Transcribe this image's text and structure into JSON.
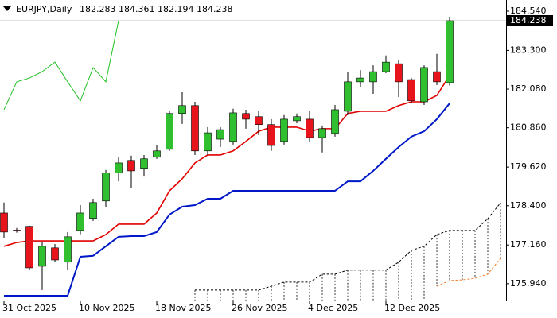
{
  "header": {
    "symbol": "EURJPY,Daily",
    "open": 182.283,
    "high": 184.361,
    "low": 182.194,
    "close": 184.238
  },
  "chart_data": {
    "type": "candlestick",
    "categories": [
      "31 Oct 2025",
      null,
      null,
      null,
      null,
      null,
      "10 Nov 2025",
      null,
      null,
      null,
      null,
      null,
      "18 Nov 2025",
      null,
      null,
      null,
      null,
      null,
      "26 Nov 2025",
      null,
      null,
      null,
      null,
      null,
      "4 Dec 2025",
      null,
      null,
      null,
      null,
      null,
      "12 Dec 2025",
      null,
      null,
      null,
      null,
      null,
      null,
      null,
      null,
      null
    ],
    "open": [
      178.17,
      177.63,
      177.75,
      176.49,
      177.07,
      176.62,
      177.62,
      178.0,
      178.55,
      179.43,
      179.83,
      179.58,
      179.93,
      180.18,
      181.31,
      181.56,
      180.13,
      180.5,
      180.43,
      181.31,
      181.21,
      180.96,
      180.43,
      181.08,
      181.13,
      180.55,
      180.68,
      181.38,
      182.31,
      182.31,
      182.63,
      182.88,
      182.38,
      181.68,
      182.63,
      182.283,
      null,
      null,
      null,
      null
    ],
    "high": [
      178.5,
      177.7,
      177.77,
      177.24,
      177.19,
      177.57,
      178.42,
      178.62,
      179.53,
      179.93,
      179.98,
      180.0,
      180.3,
      181.38,
      181.98,
      181.68,
      180.88,
      180.88,
      181.46,
      181.43,
      181.38,
      181.13,
      181.26,
      181.31,
      181.38,
      180.93,
      181.58,
      182.63,
      182.68,
      182.83,
      183.14,
      183.01,
      182.43,
      182.83,
      183.19,
      184.361,
      null,
      null,
      null,
      null
    ],
    "low": [
      177.37,
      177.55,
      176.37,
      175.74,
      176.62,
      176.37,
      177.5,
      177.92,
      178.37,
      179.17,
      178.97,
      179.32,
      179.88,
      180.13,
      180.98,
      180.0,
      180.0,
      180.25,
      180.33,
      180.83,
      180.63,
      180.13,
      180.33,
      181.0,
      180.43,
      180.08,
      180.58,
      181.26,
      182.13,
      181.93,
      182.58,
      181.83,
      181.63,
      181.58,
      182.21,
      182.194,
      null,
      null,
      null,
      null
    ],
    "close": [
      177.57,
      177.62,
      176.44,
      177.12,
      176.69,
      177.42,
      178.17,
      178.5,
      179.43,
      179.75,
      179.5,
      179.88,
      180.13,
      181.31,
      181.56,
      180.13,
      180.7,
      180.8,
      181.33,
      181.13,
      180.96,
      180.3,
      181.13,
      181.21,
      180.55,
      180.83,
      181.43,
      182.31,
      182.43,
      182.63,
      182.93,
      182.31,
      181.71,
      182.76,
      182.31,
      184.238,
      null,
      null,
      null,
      null
    ],
    "up_color": "#2fbf2f",
    "down_color": "#e8141c",
    "lines": [
      {
        "color": "#e00000",
        "width": 1.6,
        "values": [
          177.12,
          177.24,
          177.29,
          177.29,
          177.29,
          177.29,
          177.29,
          177.29,
          177.49,
          177.82,
          177.82,
          177.82,
          178.17,
          178.87,
          179.25,
          179.75,
          180.0,
          180.0,
          180.13,
          180.43,
          180.75,
          180.88,
          180.88,
          180.88,
          180.75,
          180.83,
          180.83,
          181.31,
          181.38,
          181.38,
          181.38,
          181.56,
          181.68,
          181.68,
          181.88,
          182.51,
          null,
          null,
          null,
          null
        ]
      },
      {
        "color": "#0018c8",
        "width": 2,
        "values": [
          175.56,
          175.56,
          175.56,
          175.56,
          175.56,
          175.56,
          176.79,
          176.82,
          177.12,
          177.42,
          177.44,
          177.44,
          177.57,
          178.12,
          178.37,
          178.42,
          178.62,
          178.62,
          178.87,
          178.87,
          178.87,
          178.87,
          178.87,
          178.87,
          178.87,
          178.87,
          178.87,
          179.17,
          179.17,
          179.5,
          179.88,
          180.25,
          180.58,
          180.75,
          181.13,
          181.63,
          null,
          null,
          null,
          null
        ]
      },
      {
        "color": "#20c020",
        "width": 1,
        "values": [
          181.43,
          182.31,
          182.43,
          182.63,
          182.93,
          182.31,
          181.71,
          182.76,
          182.31,
          184.238,
          null,
          null,
          null,
          null,
          null,
          null,
          null,
          null,
          null,
          null,
          null,
          null,
          null,
          null,
          null,
          null,
          null,
          null,
          null,
          null,
          null,
          null,
          null,
          null,
          null,
          null,
          null,
          null,
          null,
          null
        ]
      }
    ],
    "cloud": {
      "span_b": {
        "color": "#000000",
        "values": [
          null,
          null,
          null,
          null,
          null,
          null,
          null,
          null,
          null,
          null,
          null,
          null,
          null,
          null,
          null,
          175.74,
          175.74,
          175.74,
          175.74,
          175.74,
          175.74,
          175.86,
          175.99,
          175.99,
          175.99,
          176.24,
          176.24,
          176.37,
          176.37,
          176.37,
          176.37,
          176.62,
          176.99,
          177.12,
          177.49,
          177.62,
          177.62,
          177.62,
          177.99,
          178.49
        ]
      },
      "span_a": {
        "color": "#f08030",
        "values": [
          null,
          null,
          null,
          null,
          null,
          null,
          null,
          null,
          null,
          null,
          null,
          null,
          null,
          null,
          null,
          null,
          null,
          null,
          null,
          null,
          null,
          null,
          null,
          null,
          null,
          null,
          null,
          null,
          null,
          null,
          null,
          null,
          null,
          null,
          175.86,
          176.04,
          176.06,
          176.11,
          176.24,
          176.74
        ]
      }
    },
    "last_price": 184.238,
    "price_line_color": "#c0c0c0",
    "ylim": [
      175.41,
      184.89
    ],
    "yticks": [
      {
        "value": 184.54,
        "label": "184.540"
      },
      {
        "value": 183.3,
        "label": "183.300"
      },
      {
        "value": 182.08,
        "label": "182.080"
      },
      {
        "value": 180.86,
        "label": "180.860"
      },
      {
        "value": 179.62,
        "label": "179.620"
      },
      {
        "value": 178.4,
        "label": "178.400"
      },
      {
        "value": 177.16,
        "label": "177.160"
      },
      {
        "value": 175.94,
        "label": "175.940"
      }
    ]
  }
}
